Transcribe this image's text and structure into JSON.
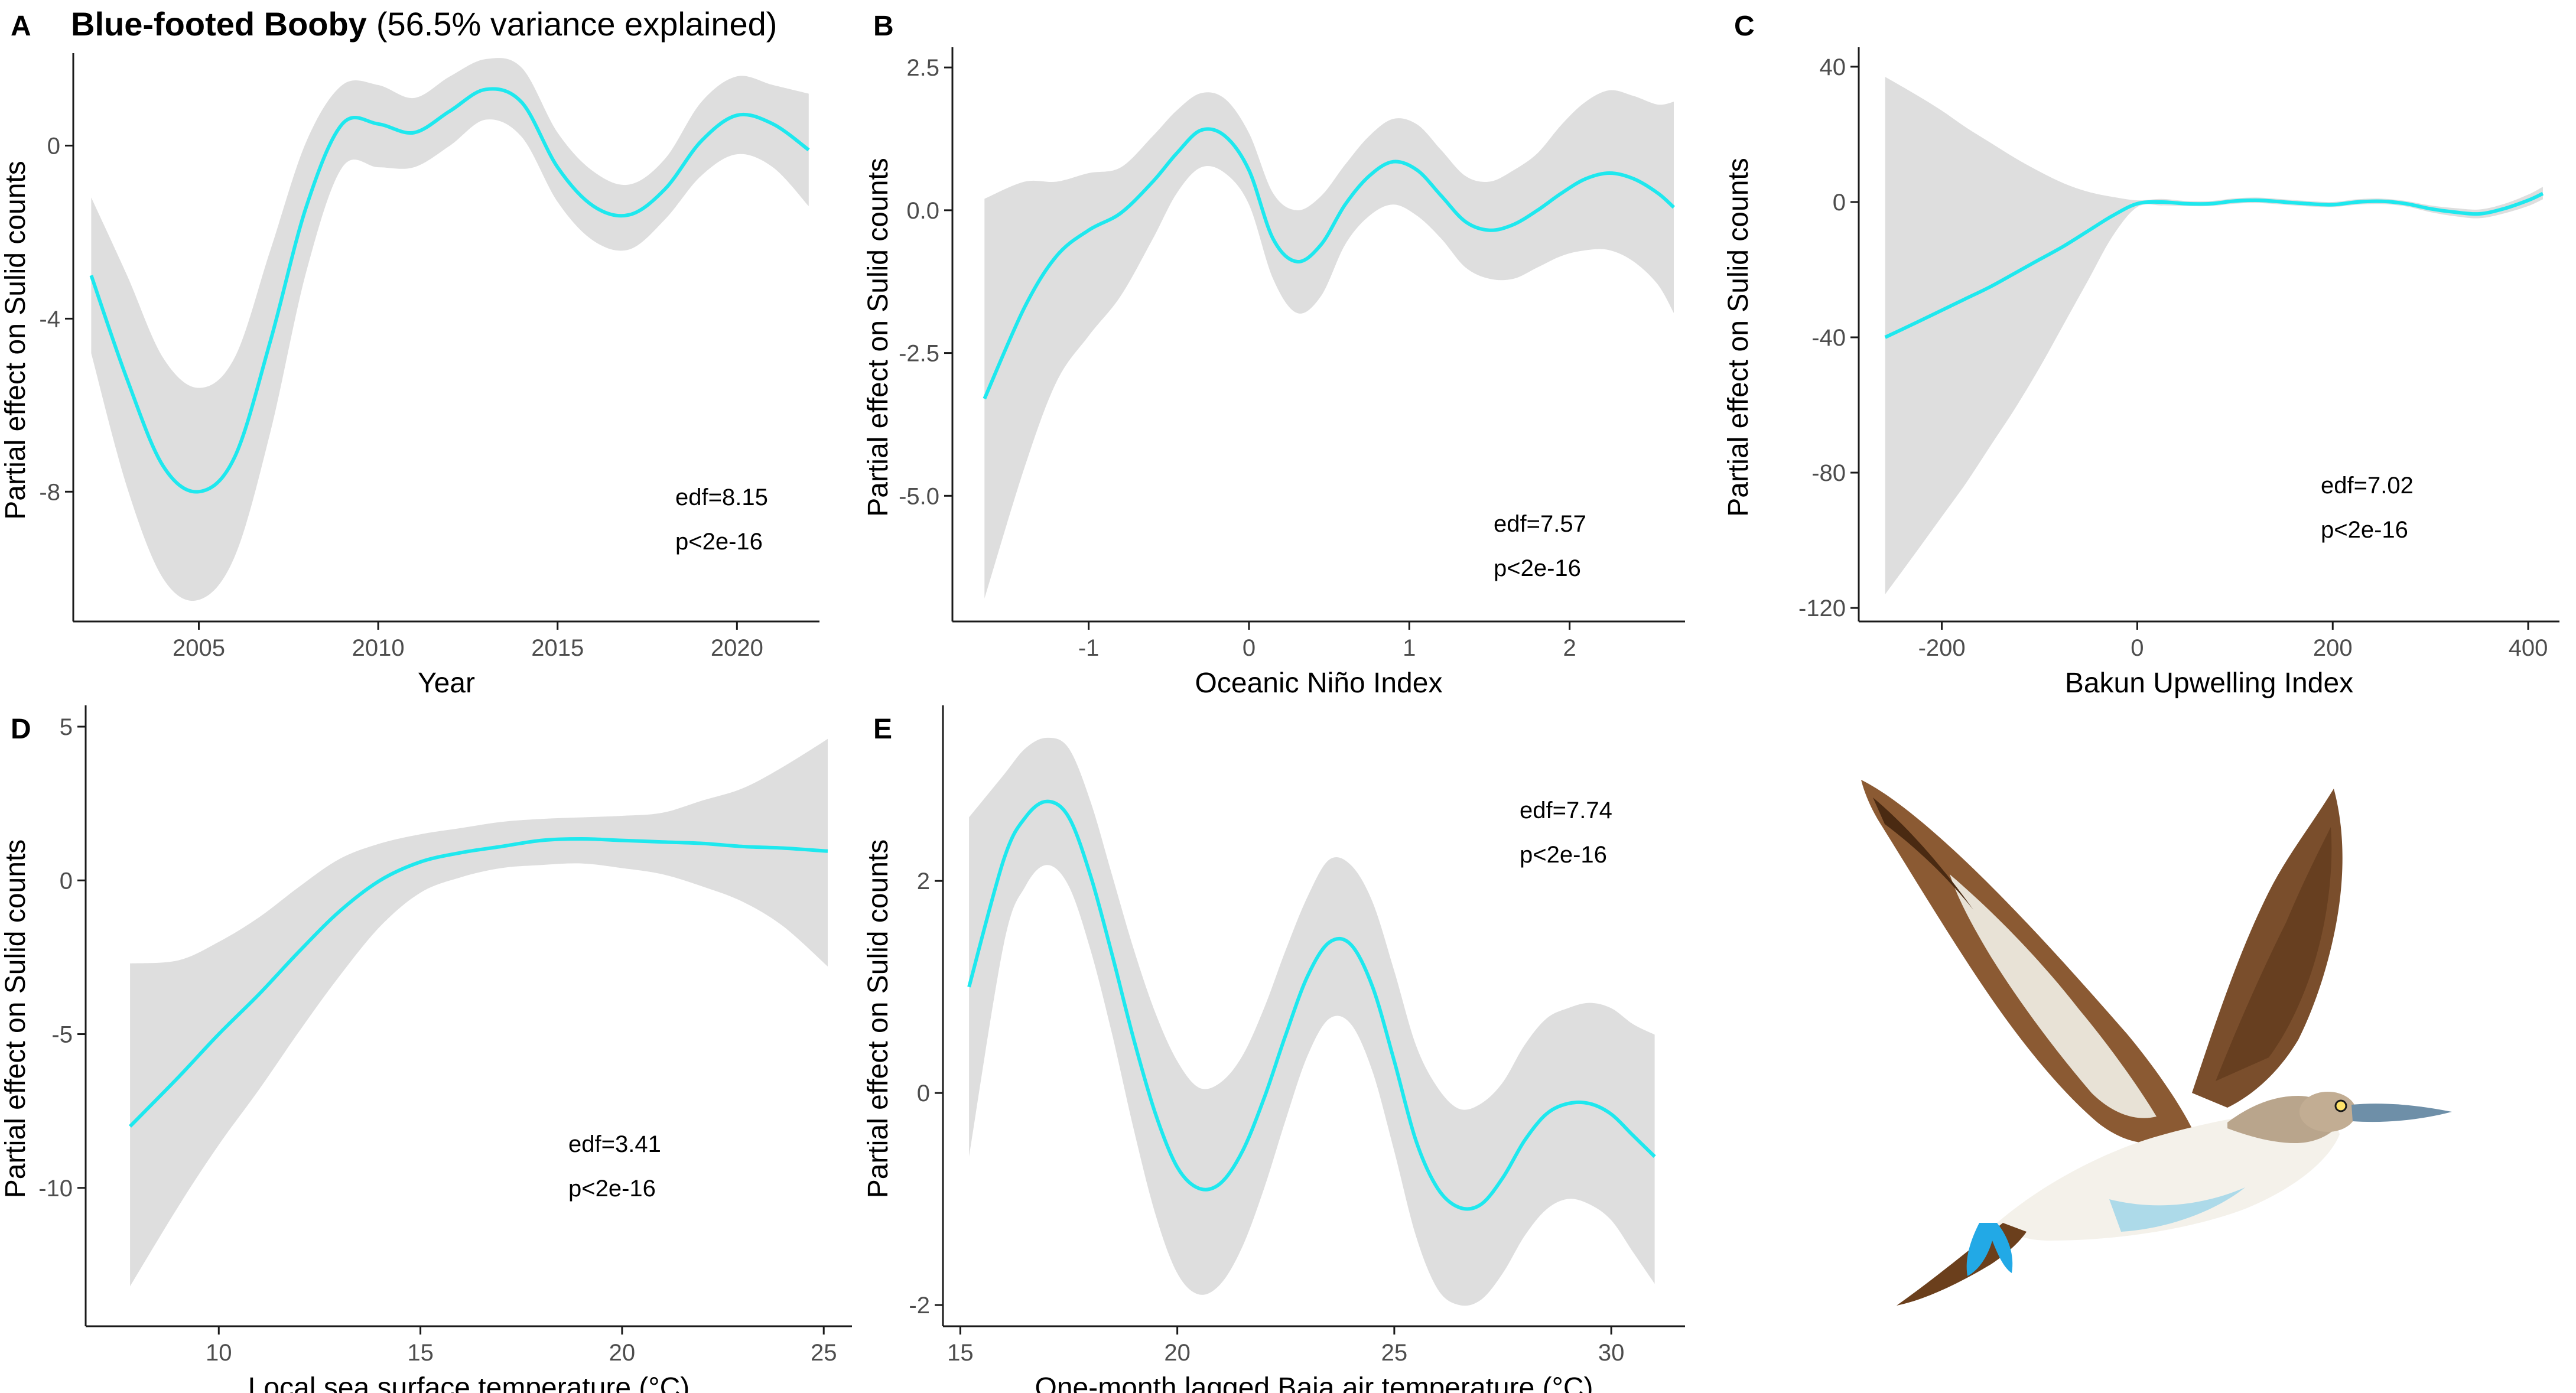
{
  "title": {
    "species": "Blue-footed Booby",
    "variance": "(56.5% variance explained)"
  },
  "colors": {
    "line": "#1ee8ee",
    "band": "#dedede",
    "axis": "#1a1a1a"
  },
  "illustration": {
    "icon": "blue-footed-booby-illustration"
  },
  "chart_data": [
    {
      "panel": "A",
      "type": "line",
      "title": "Blue-footed Booby (56.5% variance explained)",
      "xlabel": "Year",
      "ylabel": "Partial effect on Sulid counts",
      "xlim": [
        2001.5,
        2022.3
      ],
      "ylim": [
        -11.0,
        2.0
      ],
      "xticks": [
        2005,
        2010,
        2015,
        2020
      ],
      "xtick_labels": [
        "2005",
        "2010",
        "2015",
        "2020"
      ],
      "yticks": [
        -8,
        -4,
        0
      ],
      "ytick_labels": [
        "-8",
        "-4",
        "0"
      ],
      "edf": "edf=8.15",
      "p": "p<2e-16",
      "x": [
        2002,
        2003,
        2004,
        2005,
        2006,
        2007,
        2008,
        2009,
        2010,
        2011,
        2012,
        2013,
        2014,
        2015,
        2016,
        2017,
        2018,
        2019,
        2020,
        2021,
        2022
      ],
      "fit": [
        -3.0,
        -5.4,
        -7.4,
        -8.0,
        -7.2,
        -4.5,
        -1.4,
        0.5,
        0.5,
        0.3,
        0.8,
        1.3,
        1.0,
        -0.5,
        -1.4,
        -1.6,
        -1.0,
        0.1,
        0.7,
        0.5,
        -0.1
      ],
      "lower": [
        -4.8,
        -7.9,
        -10.0,
        -10.5,
        -9.5,
        -6.6,
        -2.9,
        -0.5,
        -0.5,
        -0.5,
        0.0,
        0.6,
        0.2,
        -1.3,
        -2.2,
        -2.4,
        -1.7,
        -0.7,
        -0.2,
        -0.5,
        -1.4
      ],
      "upper": [
        -1.2,
        -3.0,
        -4.9,
        -5.6,
        -4.9,
        -2.4,
        0.1,
        1.4,
        1.4,
        1.1,
        1.6,
        2.0,
        1.8,
        0.3,
        -0.6,
        -0.9,
        -0.3,
        1.0,
        1.6,
        1.4,
        1.2
      ]
    },
    {
      "panel": "B",
      "type": "line",
      "xlabel": "Oceanic Niño Index",
      "ylabel": "Partial effect on Sulid counts",
      "xlim": [
        -1.85,
        2.72
      ],
      "ylim": [
        -7.2,
        2.75
      ],
      "xticks": [
        -1,
        0,
        1,
        2
      ],
      "xtick_labels": [
        "-1",
        "0",
        "1",
        "2"
      ],
      "yticks": [
        -5.0,
        -2.5,
        0.0,
        2.5
      ],
      "ytick_labels": [
        "-5.0",
        "-2.5",
        "0.0",
        "2.5"
      ],
      "edf": "edf=7.57",
      "p": "p<2e-16",
      "x": [
        -1.65,
        -1.4,
        -1.2,
        -1.0,
        -0.8,
        -0.6,
        -0.45,
        -0.3,
        -0.15,
        0.0,
        0.15,
        0.3,
        0.45,
        0.6,
        0.75,
        0.9,
        1.05,
        1.2,
        1.35,
        1.5,
        1.65,
        1.8,
        1.95,
        2.1,
        2.25,
        2.4,
        2.55,
        2.65
      ],
      "fit": [
        -3.3,
        -1.7,
        -0.8,
        -0.35,
        -0.05,
        0.5,
        1.0,
        1.4,
        1.3,
        0.7,
        -0.5,
        -0.9,
        -0.6,
        0.1,
        0.6,
        0.85,
        0.7,
        0.25,
        -0.2,
        -0.35,
        -0.25,
        0.0,
        0.3,
        0.55,
        0.65,
        0.55,
        0.3,
        0.05
      ],
      "lower": [
        -6.8,
        -4.5,
        -3.0,
        -2.2,
        -1.5,
        -0.5,
        0.3,
        0.75,
        0.65,
        0.1,
        -1.2,
        -1.8,
        -1.5,
        -0.6,
        -0.1,
        0.1,
        -0.1,
        -0.5,
        -1.0,
        -1.2,
        -1.2,
        -1.0,
        -0.8,
        -0.7,
        -0.7,
        -0.9,
        -1.3,
        -1.8
      ],
      "upper": [
        0.2,
        0.5,
        0.5,
        0.65,
        0.75,
        1.3,
        1.75,
        2.05,
        1.95,
        1.35,
        0.3,
        0.0,
        0.25,
        0.8,
        1.3,
        1.6,
        1.5,
        1.05,
        0.6,
        0.5,
        0.7,
        1.0,
        1.5,
        1.9,
        2.1,
        2.0,
        1.85,
        1.9
      ]
    },
    {
      "panel": "C",
      "type": "line",
      "xlabel": "Bakun Upwelling Index",
      "ylabel": "Partial effect on Sulid counts",
      "xlim": [
        -285,
        432
      ],
      "ylim": [
        -124,
        44
      ],
      "xticks": [
        -200,
        0,
        200,
        400
      ],
      "xtick_labels": [
        "-200",
        "0",
        "200",
        "400"
      ],
      "yticks": [
        -120,
        -80,
        -40,
        0,
        40
      ],
      "ytick_labels": [
        "-120",
        "-80",
        "-40",
        "0",
        "40"
      ],
      "edf": "edf=7.02",
      "p": "p<2e-16",
      "x": [
        -258,
        -225,
        -200,
        -175,
        -150,
        -125,
        -100,
        -75,
        -50,
        -25,
        0,
        25,
        50,
        75,
        100,
        125,
        150,
        175,
        200,
        225,
        250,
        275,
        300,
        325,
        350,
        375,
        400,
        415
      ],
      "fit": [
        -40,
        -35.5,
        -32,
        -28.5,
        -25,
        -21,
        -17,
        -13,
        -8.5,
        -4,
        -0.5,
        0,
        -0.5,
        -0.5,
        0.3,
        0.5,
        0,
        -0.5,
        -0.8,
        0,
        0.2,
        -0.5,
        -2,
        -3,
        -3.5,
        -2,
        0.5,
        2.5
      ],
      "lower": [
        -116,
        -103,
        -93,
        -83,
        -72,
        -61,
        -49,
        -36,
        -23,
        -10,
        -1.5,
        -1,
        -1.2,
        -1.2,
        -0.5,
        -0.3,
        -0.8,
        -1.3,
        -1.5,
        -0.8,
        -0.6,
        -1.3,
        -3,
        -4.2,
        -4.8,
        -3.4,
        -1.2,
        0.8
      ],
      "upper": [
        37,
        31.5,
        27,
        22,
        17.5,
        13,
        9,
        5.5,
        3,
        1.5,
        0.5,
        0.9,
        0.3,
        0.3,
        1.1,
        1.3,
        0.8,
        0.3,
        0,
        0.8,
        1,
        0.3,
        -1,
        -1.8,
        -2.2,
        -0.6,
        2.2,
        4.5
      ]
    },
    {
      "panel": "D",
      "type": "line",
      "xlabel": "Local sea surface temperature (°C)",
      "ylabel": "Partial effect on Sulid counts",
      "xlim": [
        6.7,
        25.7
      ],
      "ylim": [
        -14.5,
        5.5
      ],
      "xticks": [
        10,
        15,
        20,
        25
      ],
      "xtick_labels": [
        "10",
        "15",
        "20",
        "25"
      ],
      "yticks": [
        -10,
        -5,
        0,
        5
      ],
      "ytick_labels": [
        "-10",
        "-5",
        "0",
        "5"
      ],
      "edf": "edf=3.41",
      "p": "p<2e-16",
      "x": [
        7.8,
        9,
        10,
        11,
        12,
        13,
        14,
        15,
        16,
        17,
        18,
        19,
        20,
        21,
        22,
        23,
        24,
        25.1
      ],
      "fit": [
        -8.0,
        -6.4,
        -5.0,
        -3.7,
        -2.3,
        -1.0,
        0.0,
        0.6,
        0.9,
        1.1,
        1.3,
        1.35,
        1.3,
        1.25,
        1.2,
        1.1,
        1.05,
        0.95
      ],
      "lower": [
        -13.2,
        -10.6,
        -8.6,
        -6.8,
        -4.9,
        -3.1,
        -1.5,
        -0.4,
        0.1,
        0.4,
        0.5,
        0.55,
        0.4,
        0.2,
        -0.2,
        -0.7,
        -1.5,
        -2.8
      ],
      "upper": [
        -2.7,
        -2.6,
        -2.0,
        -1.2,
        -0.2,
        0.7,
        1.2,
        1.5,
        1.7,
        1.9,
        2.0,
        2.05,
        2.1,
        2.2,
        2.6,
        3.0,
        3.7,
        4.6
      ]
    },
    {
      "panel": "E",
      "type": "line",
      "xlabel": "One-month lagged Baja air temperature (°C)",
      "ylabel": "Partial effect on Sulid counts",
      "xlim": [
        14.6,
        31.7
      ],
      "ylim": [
        -2.2,
        3.6
      ],
      "xticks": [
        15,
        20,
        25,
        30
      ],
      "xtick_labels": [
        "15",
        "20",
        "25",
        "30"
      ],
      "yticks": [
        -2,
        0,
        2
      ],
      "ytick_labels": [
        "-2",
        "0",
        "2"
      ],
      "edf": "edf=7.74",
      "p": "p<2e-16",
      "x": [
        15.2,
        16,
        16.5,
        17,
        17.5,
        18,
        18.5,
        19,
        19.5,
        20,
        20.5,
        21,
        21.5,
        22,
        22.5,
        23,
        23.5,
        24,
        24.5,
        25,
        25.5,
        26,
        26.5,
        27,
        27.5,
        28,
        28.5,
        29,
        29.5,
        30,
        30.5,
        31
      ],
      "fit": [
        1.0,
        2.2,
        2.6,
        2.75,
        2.6,
        2.05,
        1.3,
        0.5,
        -0.2,
        -0.7,
        -0.9,
        -0.85,
        -0.55,
        -0.05,
        0.55,
        1.1,
        1.42,
        1.4,
        1.0,
        0.3,
        -0.45,
        -0.9,
        -1.08,
        -1.05,
        -0.8,
        -0.45,
        -0.2,
        -0.1,
        -0.1,
        -0.2,
        -0.4,
        -0.6
      ],
      "lower": [
        -0.6,
        1.4,
        1.95,
        2.15,
        1.95,
        1.35,
        0.55,
        -0.35,
        -1.15,
        -1.7,
        -1.9,
        -1.8,
        -1.45,
        -0.9,
        -0.25,
        0.35,
        0.7,
        0.65,
        0.2,
        -0.55,
        -1.35,
        -1.85,
        -2.0,
        -1.95,
        -1.7,
        -1.35,
        -1.1,
        -1.0,
        -1.05,
        -1.2,
        -1.5,
        -1.8
      ],
      "upper": [
        2.6,
        3.0,
        3.25,
        3.35,
        3.25,
        2.75,
        2.05,
        1.35,
        0.75,
        0.3,
        0.05,
        0.1,
        0.35,
        0.8,
        1.35,
        1.85,
        2.2,
        2.15,
        1.8,
        1.15,
        0.45,
        0.05,
        -0.15,
        -0.1,
        0.1,
        0.45,
        0.7,
        0.8,
        0.85,
        0.8,
        0.65,
        0.55
      ]
    }
  ]
}
